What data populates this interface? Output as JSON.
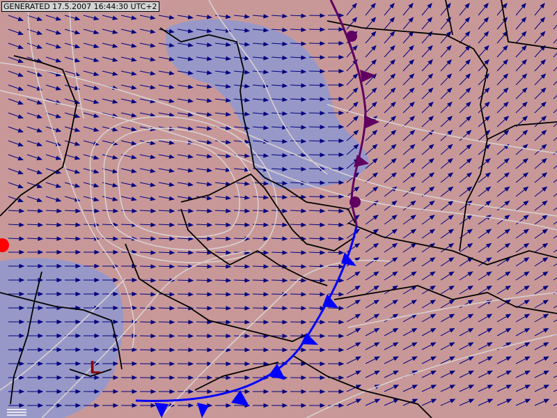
{
  "header": {
    "generated_label": "GENERATED 17.5.2007 16:44:30 UTC+2"
  },
  "map": {
    "pressure_low_label": "L",
    "colors": {
      "background": "#c89898",
      "region_fill": "#9898c8",
      "isobar": "#d8d0d0",
      "border": "#000000",
      "wind_arrow": "#000080",
      "cold_front": "#0000ff",
      "occluded_front": "#600060",
      "low_marker": "#8b0000",
      "warm_dot": "#ff0000"
    },
    "fronts": [
      "cold-front",
      "occluded-front"
    ],
    "layers": [
      "wind-arrows",
      "isobars",
      "country-borders",
      "fronts"
    ]
  }
}
